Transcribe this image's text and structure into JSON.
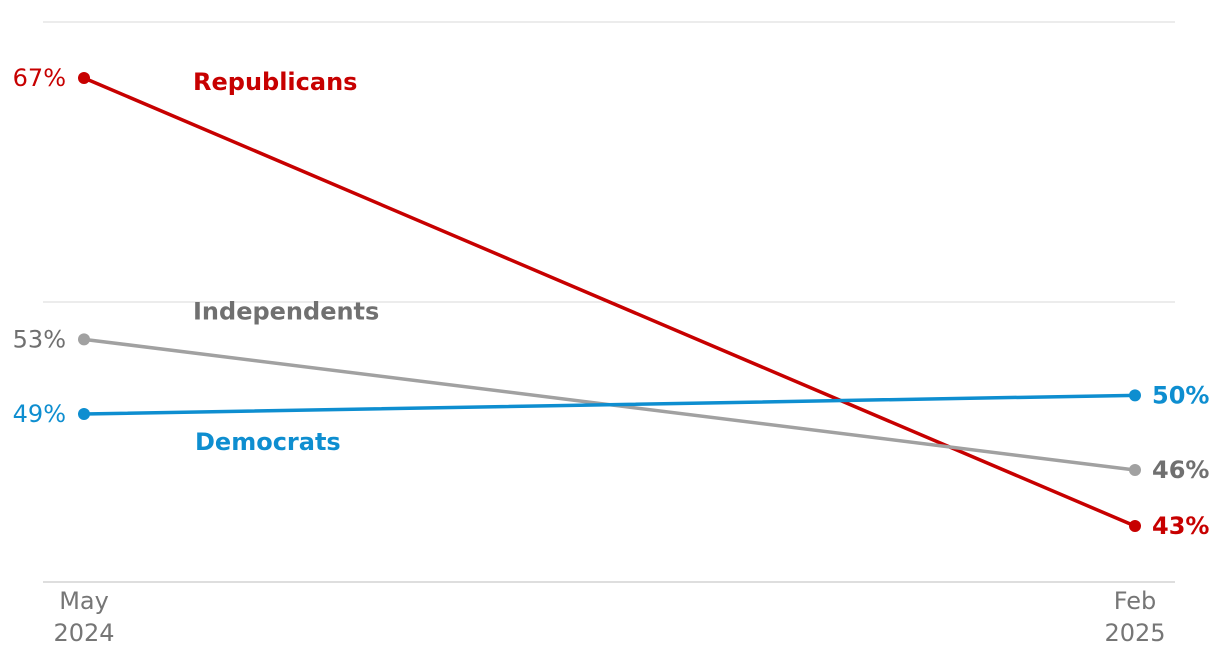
{
  "chart_data": {
    "type": "line",
    "title": "",
    "xlabel": "",
    "ylabel": "",
    "x": [
      "May 2024",
      "Feb 2025"
    ],
    "x_tick_labels": [
      {
        "line1": "May",
        "line2": "2024"
      },
      {
        "line1": "Feb",
        "line2": "2025"
      }
    ],
    "ylim": [
      40,
      70
    ],
    "gridlines": [
      40,
      55,
      70
    ],
    "grid": true,
    "series": [
      {
        "name": "Republicans",
        "values": [
          67,
          43
        ],
        "color": "#c70000",
        "start_label": "67%",
        "end_label": "43%"
      },
      {
        "name": "Independents",
        "values": [
          53,
          46
        ],
        "color": "#a1a1a1",
        "name_color": "#707070",
        "end_color": "#707070",
        "start_label": "53%",
        "end_label": "46%"
      },
      {
        "name": "Democrats",
        "values": [
          49,
          50
        ],
        "color": "#0e8ed0",
        "start_label": "49%",
        "end_label": "50%"
      }
    ]
  }
}
